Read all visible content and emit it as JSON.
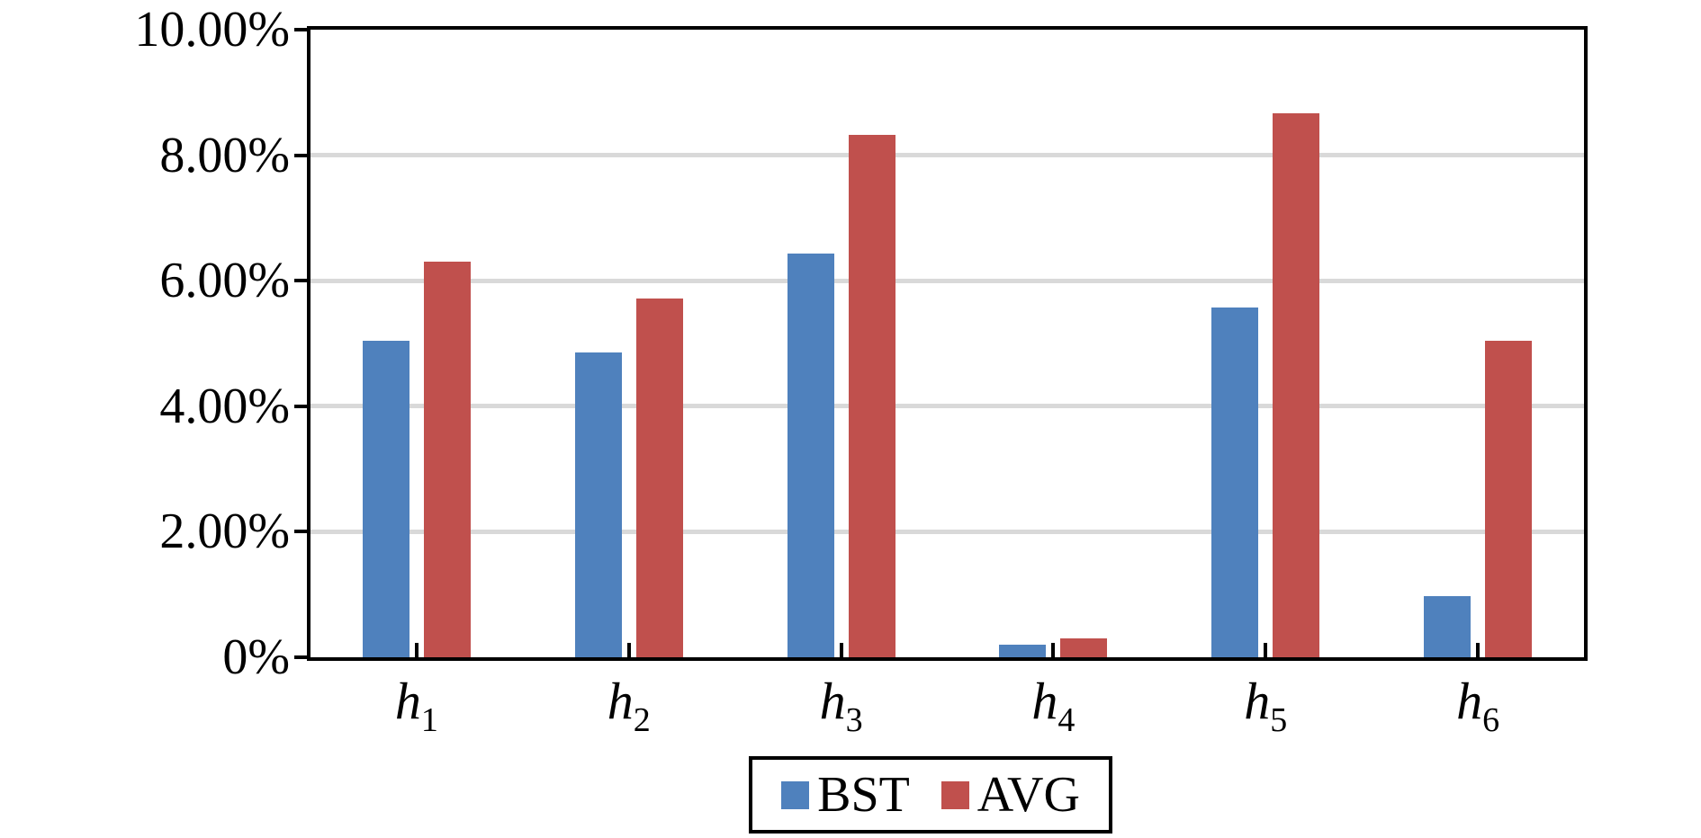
{
  "chart_data": {
    "type": "bar",
    "categories": [
      {
        "base": "h",
        "sub": "1"
      },
      {
        "base": "h",
        "sub": "2"
      },
      {
        "base": "h",
        "sub": "3"
      },
      {
        "base": "h",
        "sub": "4"
      },
      {
        "base": "h",
        "sub": "5"
      },
      {
        "base": "h",
        "sub": "6"
      }
    ],
    "series": [
      {
        "name": "BST",
        "color": "#4F81BD",
        "values": [
          5.05,
          4.85,
          6.43,
          0.2,
          5.57,
          0.97
        ]
      },
      {
        "name": "AVG",
        "color": "#C0504D",
        "values": [
          6.31,
          5.72,
          8.33,
          0.3,
          8.67,
          5.04
        ]
      }
    ],
    "y_axis": {
      "range": [
        0,
        10
      ],
      "ticks": [
        {
          "value": 0,
          "label": "0%"
        },
        {
          "value": 2,
          "label": "2.00%"
        },
        {
          "value": 4,
          "label": "4.00%"
        },
        {
          "value": 6,
          "label": "6.00%"
        },
        {
          "value": 8,
          "label": "8.00%"
        },
        {
          "value": 10,
          "label": "10.00%"
        }
      ]
    },
    "grid": {
      "show": true,
      "values": [
        2,
        4,
        6,
        8
      ],
      "color": "#D9D9D9"
    },
    "legend": {
      "position": "bottom-center",
      "items": [
        {
          "label": "BST",
          "color": "#4F81BD"
        },
        {
          "label": "AVG",
          "color": "#C0504D"
        }
      ]
    }
  },
  "colors": {
    "axis": "#000000",
    "background": "#FFFFFF",
    "gridline": "#D9D9D9",
    "series_bst": "#4F81BD",
    "series_avg": "#C0504D"
  }
}
